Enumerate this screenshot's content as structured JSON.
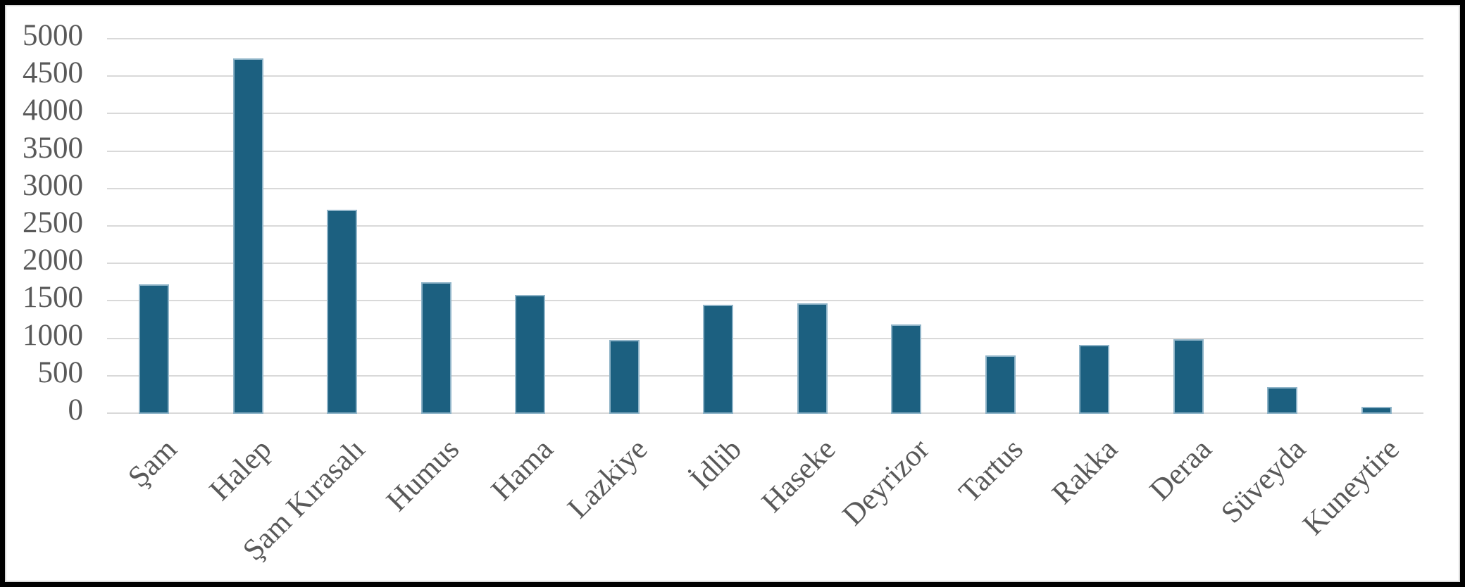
{
  "chart_data": {
    "type": "bar",
    "title": "",
    "xlabel": "",
    "ylabel": "",
    "categories": [
      "Şam",
      "Halep",
      "Şam Kırasalı",
      "Humus",
      "Hama",
      "Lazkiye",
      "İdlib",
      "Haseke",
      "Deyrizor",
      "Tartus",
      "Rakka",
      "Deraa",
      "Süveyda",
      "Kuneytire"
    ],
    "values": [
      1730,
      4750,
      2730,
      1760,
      1590,
      985,
      1460,
      1475,
      1195,
      780,
      920,
      1000,
      355,
      90
    ],
    "ylim": [
      0,
      5000
    ],
    "ytick_interval": 500,
    "yticks": [
      5000,
      4500,
      4000,
      3500,
      3000,
      2500,
      2000,
      1500,
      1000,
      500,
      0
    ],
    "grid": true,
    "legend": false,
    "x_label_rotation_deg": 45,
    "colors": {
      "bar_fill": "#1C6080",
      "bar_border": "#8FB4C8",
      "gridline": "#D9D9D9",
      "axis_text": "#595959",
      "plot_background": "#FFFFFF",
      "inner_border": "#D9D9D9",
      "outer_frame": "#000000"
    }
  }
}
